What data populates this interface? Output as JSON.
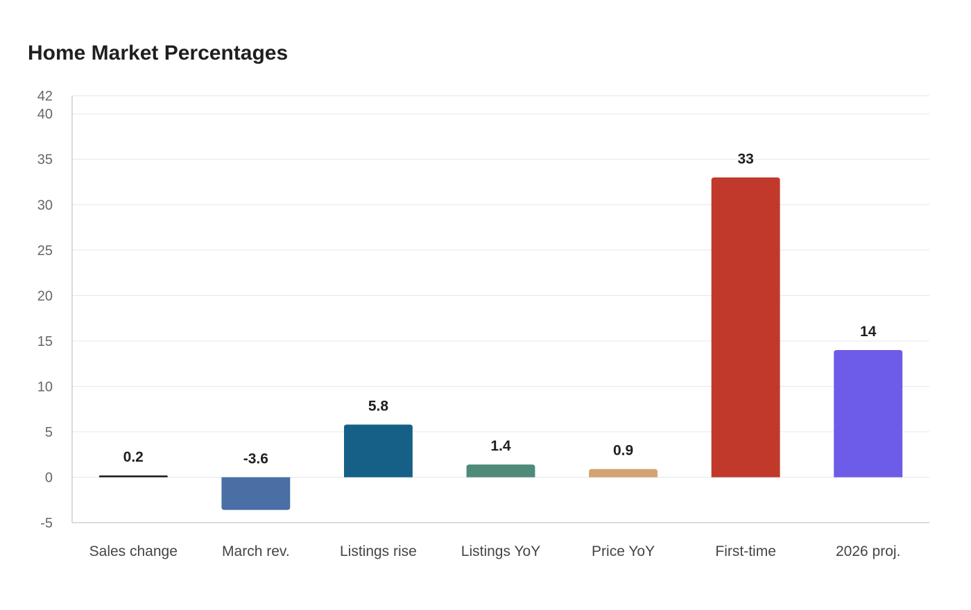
{
  "chart_data": {
    "type": "bar",
    "title": "Home Market Percentages",
    "xlabel": "",
    "ylabel": "",
    "ylim": [
      -5,
      42
    ],
    "yticks": [
      -5,
      0,
      5,
      10,
      15,
      20,
      25,
      30,
      35,
      40,
      42
    ],
    "grid": true,
    "legend": "none",
    "categories": [
      "Sales change",
      "March rev.",
      "Listings rise",
      "Listings YoY",
      "Price YoY",
      "First-time",
      "2026 proj."
    ],
    "values": [
      0.2,
      -3.6,
      5.8,
      1.4,
      0.9,
      33,
      14
    ],
    "data_labels": [
      "0.2",
      "-3.6",
      "5.8",
      "1.4",
      "0.9",
      "33",
      "14"
    ],
    "colors": [
      "#1f1f1f",
      "#4a6fa5",
      "#166088",
      "#4f8a7a",
      "#d4a373",
      "#c0392b",
      "#6c5ce7"
    ]
  }
}
